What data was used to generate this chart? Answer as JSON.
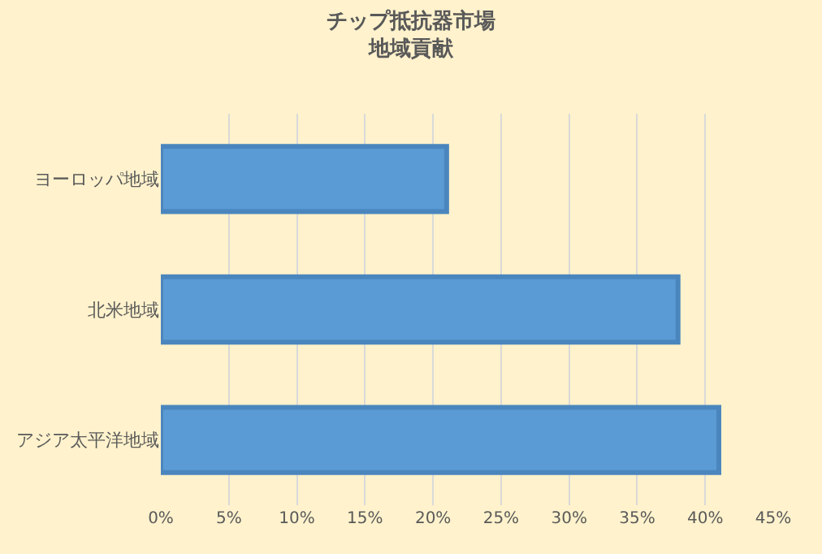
{
  "chart_data": {
    "type": "bar",
    "orientation": "horizontal",
    "title": "チップ抵抗器市場",
    "subtitle": "地域貢献",
    "categories": [
      "ヨーロッパ地域",
      "北米地域",
      "アジア太平洋地域"
    ],
    "series": [
      {
        "color": "#5b9bd5",
        "values": [
          21,
          38,
          41
        ]
      }
    ],
    "xlim": [
      0,
      45
    ],
    "xticks": [
      {
        "value": 0,
        "label": "0%"
      },
      {
        "value": 5,
        "label": "5%"
      },
      {
        "value": 10,
        "label": "10%"
      },
      {
        "value": 15,
        "label": "15%"
      },
      {
        "value": 20,
        "label": "20%"
      },
      {
        "value": 25,
        "label": "25%"
      },
      {
        "value": 30,
        "label": "30%"
      },
      {
        "value": 35,
        "label": "35%"
      },
      {
        "value": 40,
        "label": "40%"
      },
      {
        "value": 45,
        "label": "45%"
      }
    ],
    "grid": "x"
  }
}
